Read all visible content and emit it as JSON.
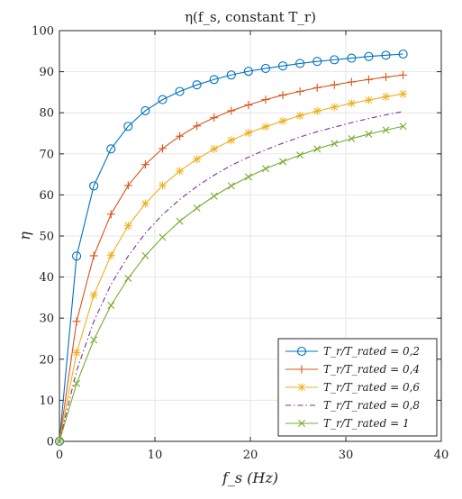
{
  "chart_data": {
    "type": "line",
    "title": "η(f_s, constant T_r)",
    "xlabel": "f_s (Hz)",
    "ylabel": "η",
    "xlim": [
      0,
      40
    ],
    "ylim": [
      0,
      100
    ],
    "xticks": [
      0,
      10,
      20,
      30,
      40
    ],
    "yticks": [
      0,
      10,
      20,
      30,
      40,
      50,
      60,
      70,
      80,
      90,
      100
    ],
    "grid": true,
    "legend_position": "bottom-right",
    "x": [
      0,
      1.8,
      3.6,
      5.4,
      7.2,
      9.0,
      10.8,
      12.6,
      14.4,
      16.2,
      18.0,
      19.8,
      21.6,
      23.4,
      25.2,
      27.0,
      28.8,
      30.6,
      32.4,
      34.2,
      36.0
    ],
    "series": [
      {
        "name": "T_r/T_rated = 0,2",
        "color": "#0072BD",
        "marker": "circle",
        "line": "solid",
        "values": [
          0,
          45.1,
          62.2,
          71.2,
          76.7,
          80.5,
          83.2,
          85.2,
          86.8,
          88.1,
          89.2,
          90.1,
          90.8,
          91.4,
          92.0,
          92.5,
          92.9,
          93.3,
          93.7,
          94.0,
          94.3
        ]
      },
      {
        "name": "T_r/T_rated = 0,4",
        "color": "#D95319",
        "marker": "plus",
        "line": "solid",
        "values": [
          0,
          29.2,
          45.2,
          55.3,
          62.3,
          67.4,
          71.3,
          74.3,
          76.8,
          78.8,
          80.5,
          81.9,
          83.2,
          84.3,
          85.2,
          86.1,
          86.8,
          87.5,
          88.1,
          88.7,
          89.2
        ]
      },
      {
        "name": "T_r/T_rated = 0,6",
        "color": "#EDB120",
        "marker": "asterisk",
        "line": "solid",
        "values": [
          0,
          21.6,
          35.6,
          45.3,
          52.5,
          57.9,
          62.3,
          65.8,
          68.7,
          71.2,
          73.3,
          75.1,
          76.6,
          78.0,
          79.3,
          80.4,
          81.4,
          82.3,
          83.1,
          83.9,
          84.6
        ]
      },
      {
        "name": "T_r/T_rated = 0,8",
        "color": "#7E2F8E",
        "marker": "none",
        "line": "dashdot",
        "values": [
          0,
          17.2,
          29.2,
          38.2,
          45.1,
          50.7,
          55.2,
          58.9,
          62.1,
          64.8,
          67.2,
          69.2,
          71.0,
          72.6,
          74.1,
          75.4,
          76.5,
          77.6,
          78.6,
          79.5,
          80.3
        ]
      },
      {
        "name": "T_r/T_rated = 1",
        "color": "#77AC30",
        "marker": "x",
        "line": "solid",
        "values": [
          0,
          14.1,
          24.7,
          33.1,
          39.7,
          45.2,
          49.7,
          53.6,
          56.8,
          59.7,
          62.2,
          64.4,
          66.4,
          68.1,
          69.7,
          71.2,
          72.5,
          73.7,
          74.8,
          75.8,
          76.7
        ]
      }
    ]
  }
}
